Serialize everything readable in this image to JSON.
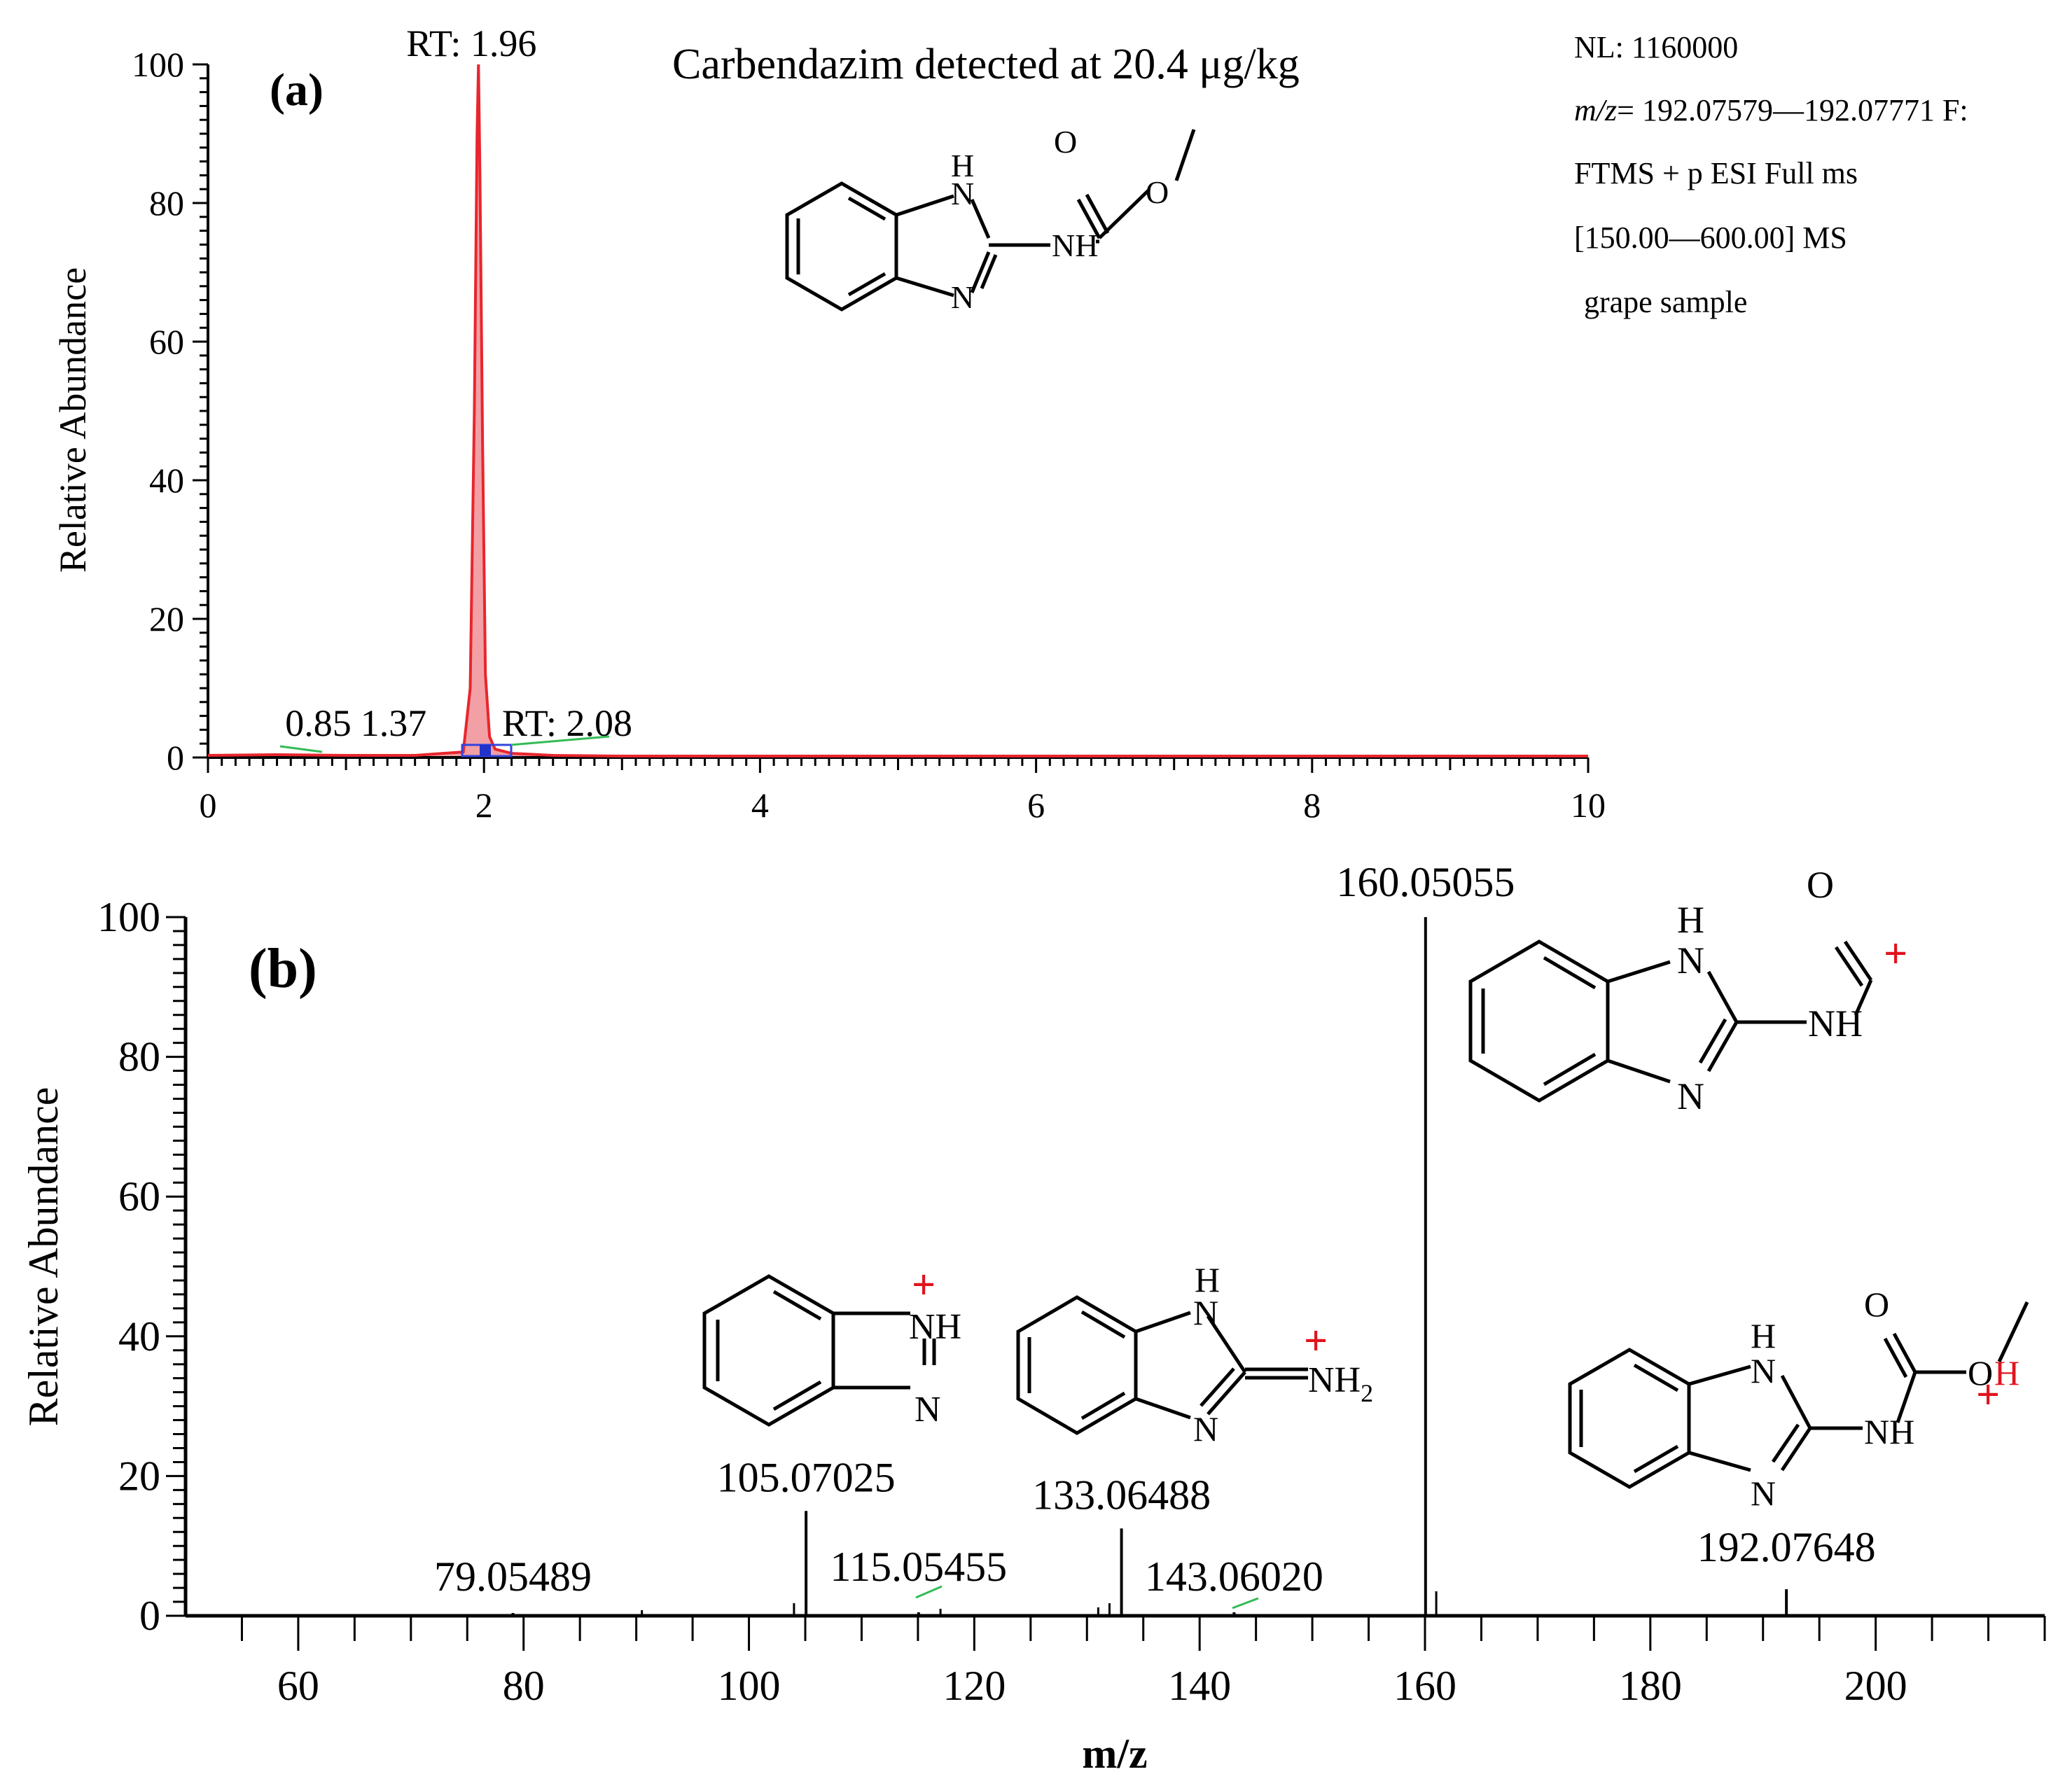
{
  "chart_data": [
    {
      "type": "line",
      "panel_label": "(a)",
      "title": "Carbendazim detected at 20.4 μg/kg",
      "xlabel": "",
      "ylabel": "Relative Abundance",
      "xlim": [
        0,
        10
      ],
      "ylim": [
        0,
        100
      ],
      "x_ticks": [
        0,
        2,
        4,
        6,
        8,
        10
      ],
      "y_ticks": [
        0,
        20,
        40,
        60,
        80,
        100
      ],
      "series": [
        {
          "color": "#e8262d",
          "fill": "#f2a0a5",
          "x": [
            0,
            0.5,
            1.0,
            1.5,
            1.85,
            1.9,
            1.93,
            1.95,
            1.96,
            1.97,
            1.99,
            2.01,
            2.04,
            2.08,
            2.2,
            2.5,
            3.0,
            10
          ],
          "y": [
            0.3,
            0.4,
            0.3,
            0.3,
            0.8,
            10,
            50,
            90,
            100,
            85,
            45,
            12,
            3,
            1.2,
            0.6,
            0.3,
            0.2,
            0.2
          ]
        }
      ],
      "peak_labels": [
        {
          "text": "RT: 1.96",
          "x": 1.96,
          "y": 100
        },
        {
          "text": "0.85",
          "x": 0.85,
          "y": 1.5
        },
        {
          "text": "1.37",
          "x": 1.37,
          "y": 1.5
        },
        {
          "text": "RT: 2.08",
          "x": 2.08,
          "y": 1.5
        }
      ],
      "info": {
        "nl": "NL: 1160000",
        "mz_label": "m/z",
        "mz_range": "= 192.07579—192.07771 F:",
        "scan": "FTMS + p ESI Full ms",
        "range": "[150.00—600.00]  MS",
        "sample": "grape sample"
      },
      "structure_labels": {
        "h": "H",
        "n1": "N",
        "n2": "N",
        "nh": "NH",
        "o1": "O",
        "o2": "O"
      }
    },
    {
      "type": "bar",
      "panel_label": "(b)",
      "xlabel": "m/z",
      "ylabel": "Relative Abundance",
      "xlim": [
        50,
        215
      ],
      "ylim": [
        0,
        100
      ],
      "x_ticks": [
        60,
        80,
        100,
        120,
        140,
        160,
        180,
        200
      ],
      "y_ticks": [
        0,
        20,
        40,
        60,
        80,
        100
      ],
      "peaks": [
        {
          "mz": 160.05055,
          "value": 100,
          "label": "160.05055"
        },
        {
          "mz": 105.07025,
          "value": 15,
          "label": "105.07025"
        },
        {
          "mz": 133.06488,
          "value": 12.5,
          "label": "133.06488"
        },
        {
          "mz": 192.07648,
          "value": 3.8,
          "label": "192.07648"
        },
        {
          "mz": 115.05455,
          "value": 0.5,
          "label": "115.05455"
        },
        {
          "mz": 143.0602,
          "value": 0.5,
          "label": "143.06020"
        },
        {
          "mz": 79.05489,
          "value": 0.4,
          "label": "79.05489"
        }
      ],
      "minor_peaks": [
        {
          "mz": 104.0,
          "value": 1.8
        },
        {
          "mz": 117.0,
          "value": 1.0
        },
        {
          "mz": 131.0,
          "value": 1.2
        },
        {
          "mz": 132.0,
          "value": 1.8
        },
        {
          "mz": 161.0,
          "value": 3.5
        },
        {
          "mz": 90.5,
          "value": 0.8
        }
      ],
      "structures": [
        {
          "labels": [
            "NH",
            "N"
          ],
          "charge": "+"
        },
        {
          "labels": [
            "H",
            "N",
            "N",
            "NH",
            "2"
          ],
          "charge": "+"
        },
        {
          "labels": [
            "H",
            "N",
            "N",
            "NH",
            "O"
          ],
          "charge": "+"
        },
        {
          "labels": [
            "H",
            "N",
            "N",
            "NH",
            "O",
            "H"
          ],
          "charge": "+"
        }
      ]
    }
  ]
}
